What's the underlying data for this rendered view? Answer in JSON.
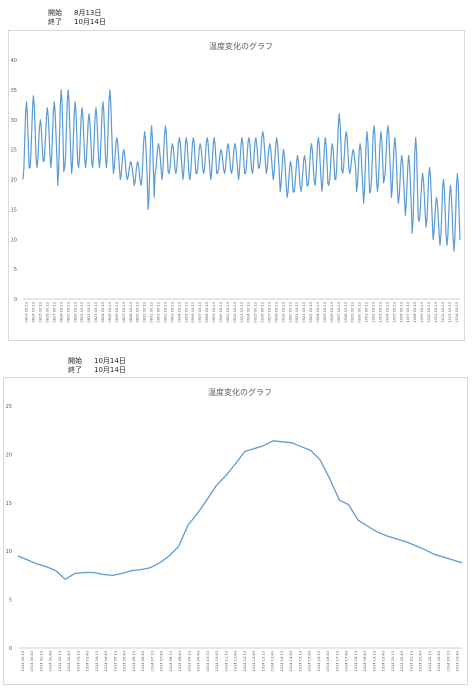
{
  "colors": {
    "line": "#5b9bd5",
    "grid": "#e3e3e3",
    "axis": "#bfbfbf",
    "text": "#595959"
  },
  "sections": [
    {
      "start_label": "開始",
      "start_value": "8月13日",
      "end_label": "終了",
      "end_value": "10月14日"
    },
    {
      "start_label": "開始",
      "start_value": "10月14日",
      "end_label": "終了",
      "end_value": "10月14日"
    }
  ],
  "chart_data": [
    {
      "type": "line",
      "title": "温度変化のグラフ",
      "ylim": [
        0,
        40
      ],
      "yticks": [
        0,
        5,
        10,
        15,
        20,
        25,
        30,
        35,
        40
      ],
      "grid": false,
      "x": [
        "0813 00:13",
        "0814 00:13",
        "0815 00:13",
        "0816 00:13",
        "0817 00:13",
        "0818 00:13",
        "0819 00:13",
        "0820 00:13",
        "0821 00:13",
        "0822 00:13",
        "0823 00:13",
        "0824 00:13",
        "0825 00:13",
        "0826 00:13",
        "0827 00:13",
        "0828 00:13",
        "0829 00:13",
        "0830 00:13",
        "0831 00:13",
        "0901 00:13",
        "0902 00:13",
        "0903 00:13",
        "0904 00:13",
        "0905 00:13",
        "0906 00:13",
        "0907 00:13",
        "0908 00:13",
        "0909 00:13",
        "0910 00:13",
        "0911 00:13",
        "0912 00:13",
        "0913 00:13",
        "0914 00:13",
        "0915 00:13",
        "0916 00:13",
        "0917 00:13",
        "0918 00:13",
        "0919 00:13",
        "0920 00:13",
        "0921 00:13",
        "0922 00:13",
        "0923 00:13",
        "0924 00:13",
        "0925 00:13",
        "0926 00:13",
        "0927 00:13",
        "0928 00:13",
        "0929 00:13",
        "0930 00:13",
        "1001 00:13",
        "1002 00:13",
        "1003 00:13",
        "1004 00:13",
        "1005 00:13",
        "1006 00:13",
        "1007 00:13",
        "1008 00:13",
        "1009 00:13",
        "1010 00:13",
        "1011 00:13",
        "1012 00:13",
        "1013 00:13",
        "1014 00:13"
      ],
      "daily_min": [
        20,
        22,
        22,
        23,
        22,
        19,
        22,
        21,
        22,
        22,
        22,
        22,
        22,
        21,
        20,
        20,
        19,
        19,
        15,
        21,
        20,
        21,
        21,
        20,
        20,
        21,
        21,
        20,
        21,
        21,
        21,
        20,
        21,
        21,
        22,
        21,
        20,
        18,
        17,
        18,
        18,
        19,
        19,
        18,
        19,
        20,
        21,
        21,
        18,
        16,
        18,
        18,
        20,
        17,
        16,
        14,
        11,
        13,
        12,
        10,
        9,
        9,
        8
      ],
      "daily_max": [
        33,
        34,
        30,
        32,
        33,
        35,
        35,
        33,
        32,
        31,
        32,
        33,
        35,
        27,
        25,
        23,
        23,
        28,
        29,
        26,
        29,
        26,
        27,
        27,
        27,
        26,
        27,
        27,
        25,
        26,
        26,
        27,
        27,
        27,
        28,
        26,
        27,
        25,
        23,
        24,
        24,
        26,
        27,
        27,
        26,
        31,
        28,
        25,
        26,
        28,
        29,
        28,
        29,
        27,
        24,
        24,
        27,
        21,
        22,
        17,
        20,
        19,
        21
      ]
    },
    {
      "type": "line",
      "title": "温度変化のグラフ",
      "ylim": [
        0,
        25
      ],
      "yticks": [
        0,
        5,
        10,
        15,
        20,
        25
      ],
      "grid": false,
      "x": [
        "1014 00:13",
        "1014 00:43",
        "1014 01:13",
        "1014 01:43",
        "1014 02:13",
        "1014 02:43",
        "1014 03:13",
        "1014 03:43",
        "1014 04:13",
        "1014 04:43",
        "1014 05:13",
        "1014 05:43",
        "1014 06:13",
        "1014 06:43",
        "1014 07:13",
        "1014 07:43",
        "1014 08:13",
        "1014 08:43",
        "1014 09:13",
        "1014 09:43",
        "1014 10:13",
        "1014 10:43",
        "1014 11:13",
        "1014 11:43",
        "1014 12:13",
        "1014 12:43",
        "1014 13:13",
        "1014 13:43",
        "1014 14:13",
        "1014 14:43",
        "1014 15:13",
        "1014 15:43",
        "1014 16:13",
        "1014 16:43",
        "1014 17:13",
        "1014 17:43",
        "1014 18:13",
        "1014 18:43",
        "1014 19:13",
        "1014 19:43",
        "1014 20:13",
        "1014 20:43",
        "1014 21:13",
        "1014 21:43",
        "1014 22:13",
        "1014 22:43",
        "1014 23:13",
        "1014 23:43"
      ],
      "values": [
        9.5,
        9.1,
        8.7,
        8.4,
        8.0,
        7.1,
        7.7,
        7.8,
        7.8,
        7.6,
        7.5,
        7.7,
        8.0,
        8.1,
        8.3,
        8.8,
        9.5,
        10.5,
        12.7,
        13.9,
        15.3,
        16.8,
        17.8,
        19.0,
        20.3,
        20.6,
        20.9,
        21.4,
        21.3,
        21.2,
        20.8,
        20.4,
        19.4,
        17.5,
        15.3,
        14.8,
        13.2,
        12.6,
        12.0,
        11.6,
        11.3,
        11.0,
        10.6,
        10.2,
        9.7,
        9.4,
        9.1,
        8.8
      ]
    }
  ]
}
